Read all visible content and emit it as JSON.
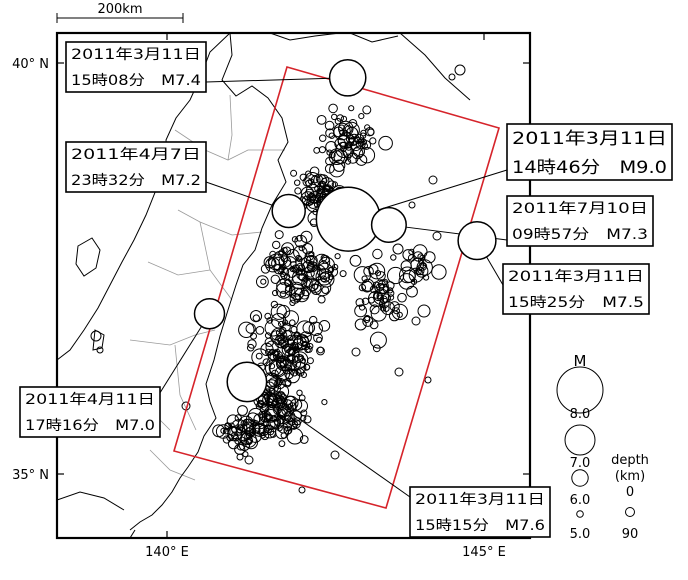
{
  "scale_bar": {
    "label": "200km"
  },
  "axes": {
    "lat_labels": [
      {
        "text": "40° N",
        "lat": 40
      },
      {
        "text": "35° N",
        "lat": 35
      }
    ],
    "lon_labels": [
      {
        "text": "140° E",
        "lon": 140
      },
      {
        "text": "145° E",
        "lon": 145
      }
    ]
  },
  "colors": {
    "focal_region": "#d6242b",
    "event": "#000000",
    "map_line": "#000000",
    "prefecture_line": "#9a9a9a"
  },
  "main_events": [
    {
      "id": "m74",
      "line1": "2011年3月11日",
      "line2": "15時08分　M7.4",
      "lon": 142.85,
      "lat": 39.82,
      "mag": 7.4
    },
    {
      "id": "m72",
      "line1": "2011年4月7日",
      "line2": "23時32分　M7.2",
      "lon": 141.92,
      "lat": 38.2,
      "mag": 7.2
    },
    {
      "id": "m90",
      "line1": "2011年3月11日",
      "line2": "14時46分　M9.0",
      "lon": 142.86,
      "lat": 38.1,
      "mag": 9.0
    },
    {
      "id": "m73",
      "line1": "2011年7月10日",
      "line2": "09時57分　M7.3",
      "lon": 143.5,
      "lat": 38.03,
      "mag": 7.3
    },
    {
      "id": "m75",
      "line1": "2011年3月11日",
      "line2": "15時25分　M7.5",
      "lon": 144.89,
      "lat": 37.84,
      "mag": 7.5
    },
    {
      "id": "m70",
      "line1": "2011年4月11日",
      "line2": "17時16分　M7.0",
      "lon": 140.67,
      "lat": 36.95,
      "mag": 7.0
    },
    {
      "id": "m76",
      "line1": "2011年3月11日",
      "line2": "15時15分　M7.6",
      "lon": 141.26,
      "lat": 36.12,
      "mag": 7.6
    }
  ],
  "legend": {
    "mag_title": "M",
    "mag_items": [
      {
        "text": "8.0",
        "mag": 8.0
      },
      {
        "text": "7.0",
        "mag": 7.0
      },
      {
        "text": "6.0",
        "mag": 6.0
      },
      {
        "text": "5.0",
        "mag": 5.0
      }
    ],
    "depth_title_1": "depth",
    "depth_title_2": "(km)",
    "depth_items": [
      {
        "text": "0",
        "depth": 0
      },
      {
        "text": "90",
        "depth": 90
      }
    ]
  }
}
